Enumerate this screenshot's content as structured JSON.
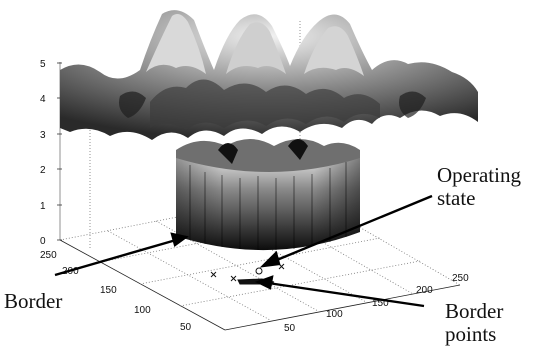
{
  "chart_data": {
    "type": "surface",
    "z_ticks": [
      "0",
      "1",
      "2",
      "3",
      "4",
      "5"
    ],
    "y_ticks": [
      "250",
      "200",
      "150",
      "100",
      "50"
    ],
    "x_ticks": [
      "50",
      "100",
      "150",
      "200",
      "250"
    ],
    "zlim": [
      0,
      5
    ],
    "xlim": [
      0,
      250
    ],
    "ylim": [
      0,
      250
    ],
    "grid": "on",
    "annotations": {
      "operating_state": [
        "Operating",
        "state"
      ],
      "border": "Border",
      "border_points": [
        "Border",
        "points"
      ]
    }
  }
}
